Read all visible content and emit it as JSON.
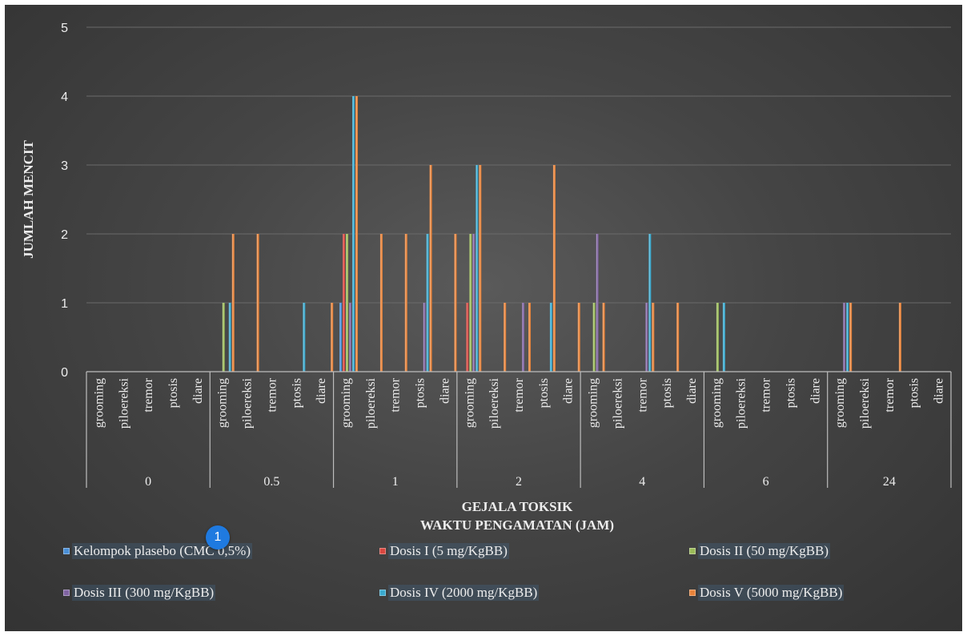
{
  "chart_data": {
    "type": "bar",
    "xlabel_lines": [
      "GEJALA TOKSIK",
      "WAKTU PENGAMATAN (JAM)"
    ],
    "ylabel": "JUMLAH MENCIT",
    "ylim": [
      0,
      5
    ],
    "yticks": [
      "0",
      "1",
      "2",
      "3",
      "4",
      "5"
    ],
    "grid": true,
    "legend_position": "bottom",
    "groups": [
      "0",
      "0.5",
      "1",
      "2",
      "4",
      "6",
      "24"
    ],
    "symptoms": [
      "grooming",
      "piloereksi",
      "tremor",
      "ptosis",
      "diare"
    ],
    "series": [
      {
        "name": "Kelompok plasebo (CMC 0,5%)",
        "color": "#4a8fd6",
        "values": [
          0,
          0,
          0,
          0,
          0,
          0,
          0,
          0,
          0,
          0,
          1,
          0,
          0,
          0,
          0,
          0,
          0,
          0,
          0,
          0,
          0,
          0,
          0,
          0,
          0,
          0,
          0,
          0,
          0,
          0,
          0,
          0,
          0,
          0,
          0
        ]
      },
      {
        "name": "Dosis I (5 mg/KgBB)",
        "color": "#d9473f",
        "values": [
          0,
          0,
          0,
          0,
          0,
          0,
          0,
          0,
          0,
          0,
          2,
          0,
          0,
          0,
          0,
          1,
          0,
          0,
          0,
          0,
          0,
          0,
          0,
          0,
          0,
          0,
          0,
          0,
          0,
          0,
          0,
          0,
          0,
          0,
          0
        ]
      },
      {
        "name": "Dosis II (50 mg/KgBB)",
        "color": "#9bbb59",
        "values": [
          0,
          0,
          0,
          0,
          0,
          1,
          0,
          0,
          0,
          0,
          2,
          0,
          0,
          0,
          0,
          2,
          0,
          0,
          0,
          0,
          1,
          0,
          0,
          0,
          0,
          1,
          0,
          0,
          0,
          0,
          0,
          0,
          0,
          0,
          0
        ]
      },
      {
        "name": "Dosis III (300 mg/KgBB)",
        "color": "#8064a2",
        "values": [
          0,
          0,
          0,
          0,
          0,
          0,
          0,
          0,
          0,
          0,
          1,
          0,
          0,
          1,
          0,
          2,
          0,
          1,
          0,
          0,
          2,
          0,
          1,
          0,
          0,
          0,
          0,
          0,
          0,
          0,
          1,
          0,
          0,
          0,
          0
        ]
      },
      {
        "name": "Dosis IV (2000 mg/KgBB)",
        "color": "#3aaacf",
        "values": [
          0,
          0,
          0,
          0,
          0,
          1,
          0,
          0,
          1,
          0,
          4,
          0,
          0,
          2,
          0,
          3,
          0,
          0,
          1,
          0,
          0,
          0,
          2,
          0,
          0,
          1,
          0,
          0,
          0,
          0,
          1,
          0,
          0,
          0,
          0
        ]
      },
      {
        "name": "Dosis V (5000 mg/KgBB)",
        "color": "#e8833a",
        "values": [
          0,
          0,
          0,
          0,
          0,
          2,
          2,
          0,
          0,
          1,
          4,
          2,
          2,
          3,
          2,
          3,
          1,
          1,
          3,
          1,
          1,
          0,
          1,
          1,
          0,
          0,
          0,
          0,
          0,
          0,
          1,
          0,
          1,
          0,
          0
        ]
      }
    ]
  },
  "marker": {
    "label": "1"
  }
}
